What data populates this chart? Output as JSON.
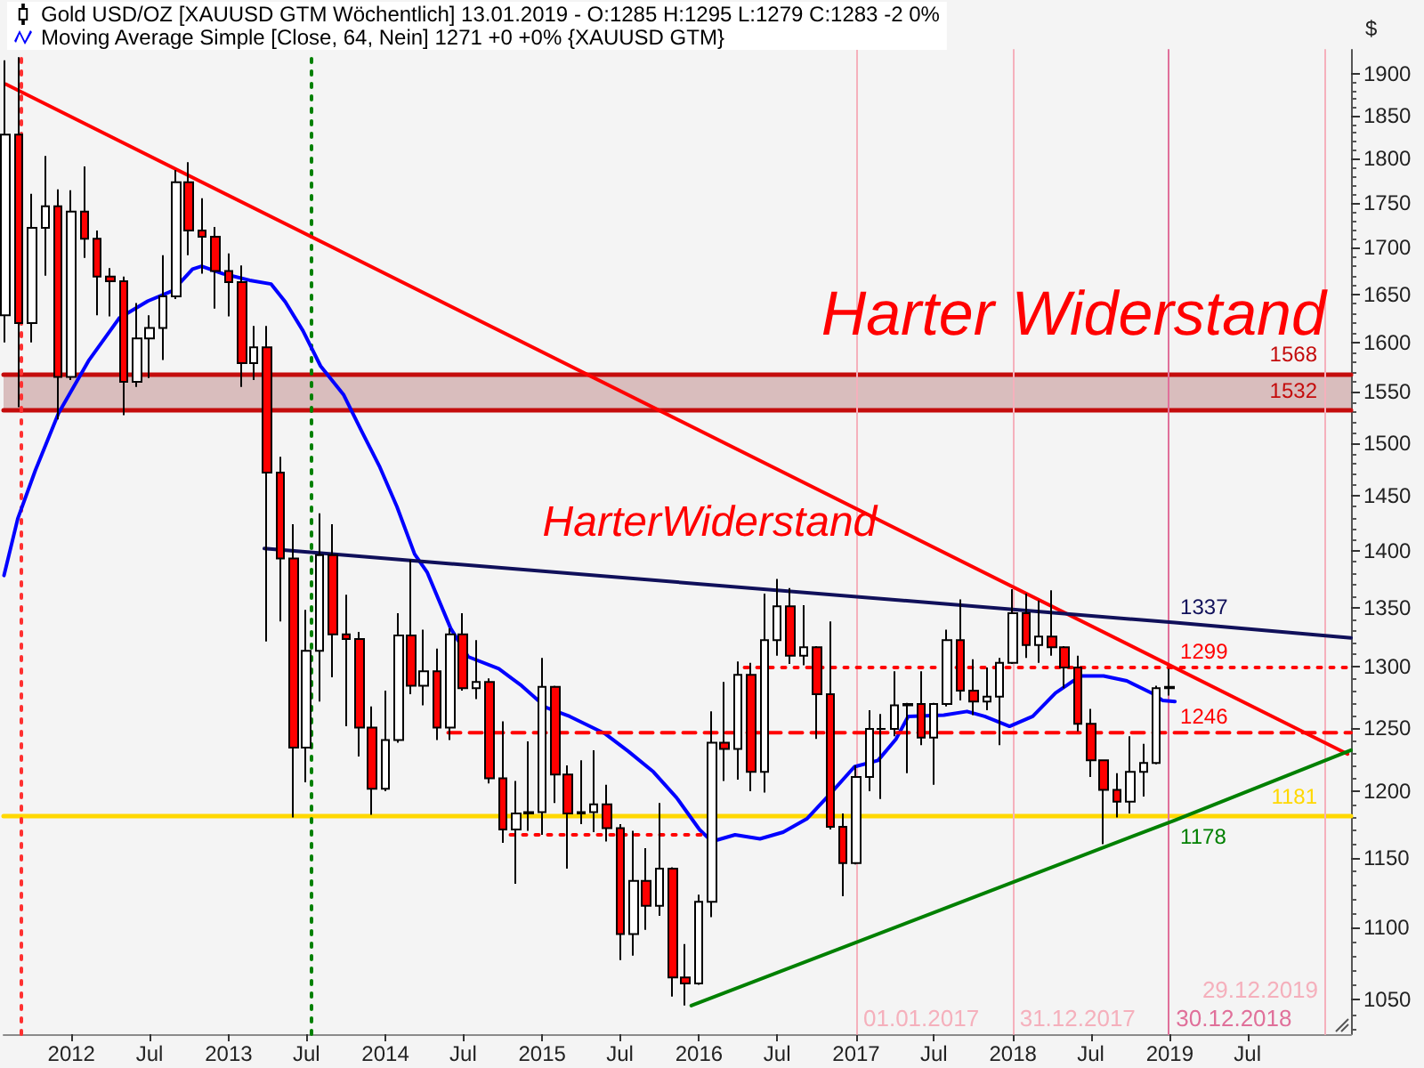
{
  "chart_data": {
    "type": "candlestick",
    "ylabel": "$",
    "log": true,
    "legend": "top left",
    "marker": "none",
    "xlim": [
      "2011-07-27",
      "2020-02-27"
    ],
    "ylim": [
      1027,
      1930
    ],
    "xticks": [
      {
        "value": "2012-01-01",
        "label": "2012"
      },
      {
        "value": "2012-07-01",
        "label": "Jul"
      },
      {
        "value": "2013-01-01",
        "label": "2013"
      },
      {
        "value": "2013-07-01",
        "label": "Jul"
      },
      {
        "value": "2014-01-01",
        "label": "2014"
      },
      {
        "value": "2014-07-01",
        "label": "Jul"
      },
      {
        "value": "2015-01-01",
        "label": "2015"
      },
      {
        "value": "2015-07-01",
        "label": "Jul"
      },
      {
        "value": "2016-01-01",
        "label": "2016"
      },
      {
        "value": "2016-07-01",
        "label": "Jul"
      },
      {
        "value": "2017-01-01",
        "label": "2017"
      },
      {
        "value": "2017-07-01",
        "label": "Jul"
      },
      {
        "value": "2018-01-01",
        "label": "2018"
      },
      {
        "value": "2018-07-01",
        "label": "Jul"
      },
      {
        "value": "2019-01-01",
        "label": "2019"
      },
      {
        "value": "2019-07-01",
        "label": "Jul"
      }
    ],
    "yticks": [
      {
        "value": 1030,
        "label": null
      },
      {
        "value": 1040,
        "label": null
      },
      1050,
      {
        "value": 1060,
        "label": null
      },
      {
        "value": 1070,
        "label": null
      },
      {
        "value": 1080,
        "label": null
      },
      {
        "value": 1090,
        "label": null
      },
      1100,
      {
        "value": 1110,
        "label": null
      },
      {
        "value": 1120,
        "label": null
      },
      {
        "value": 1130,
        "label": null
      },
      {
        "value": 1140,
        "label": null
      },
      1150,
      {
        "value": 1160,
        "label": null
      },
      {
        "value": 1170,
        "label": null
      },
      {
        "value": 1180,
        "label": null
      },
      {
        "value": 1190,
        "label": null
      },
      1200,
      {
        "value": 1210,
        "label": null
      },
      {
        "value": 1220,
        "label": null
      },
      {
        "value": 1230,
        "label": null
      },
      {
        "value": 1240,
        "label": null
      },
      1250,
      {
        "value": 1260,
        "label": null
      },
      {
        "value": 1270,
        "label": null
      },
      {
        "value": 1280,
        "label": null
      },
      {
        "value": 1290,
        "label": null
      },
      1300,
      {
        "value": 1310,
        "label": null
      },
      {
        "value": 1320,
        "label": null
      },
      {
        "value": 1330,
        "label": null
      },
      {
        "value": 1340,
        "label": null
      },
      1350,
      {
        "value": 1360,
        "label": null
      },
      {
        "value": 1370,
        "label": null
      },
      {
        "value": 1380,
        "label": null
      },
      {
        "value": 1390,
        "label": null
      },
      1400,
      {
        "value": 1410,
        "label": null
      },
      {
        "value": 1420,
        "label": null
      },
      {
        "value": 1430,
        "label": null
      },
      {
        "value": 1440,
        "label": null
      },
      1450,
      {
        "value": 1460,
        "label": null
      },
      {
        "value": 1470,
        "label": null
      },
      {
        "value": 1480,
        "label": null
      },
      {
        "value": 1490,
        "label": null
      },
      1500,
      {
        "value": 1510,
        "label": null
      },
      {
        "value": 1520,
        "label": null
      },
      {
        "value": 1530,
        "label": null
      },
      {
        "value": 1540,
        "label": null
      },
      1550,
      {
        "value": 1560,
        "label": null
      },
      {
        "value": 1570,
        "label": null
      },
      {
        "value": 1580,
        "label": null
      },
      {
        "value": 1590,
        "label": null
      },
      1600,
      {
        "value": 1610,
        "label": null
      },
      {
        "value": 1620,
        "label": null
      },
      {
        "value": 1630,
        "label": null
      },
      {
        "value": 1640,
        "label": null
      },
      1650,
      {
        "value": 1660,
        "label": null
      },
      {
        "value": 1670,
        "label": null
      },
      {
        "value": 1680,
        "label": null
      },
      {
        "value": 1690,
        "label": null
      },
      1700,
      {
        "value": 1710,
        "label": null
      },
      {
        "value": 1720,
        "label": null
      },
      {
        "value": 1730,
        "label": null
      },
      {
        "value": 1740,
        "label": null
      },
      1750,
      {
        "value": 1760,
        "label": null
      },
      {
        "value": 1770,
        "label": null
      },
      {
        "value": 1780,
        "label": null
      },
      {
        "value": 1790,
        "label": null
      },
      1800,
      {
        "value": 1810,
        "label": null
      },
      {
        "value": 1820,
        "label": null
      },
      {
        "value": 1830,
        "label": null
      },
      {
        "value": 1840,
        "label": null
      },
      1850,
      {
        "value": 1860,
        "label": null
      },
      {
        "value": 1870,
        "label": null
      },
      {
        "value": 1880,
        "label": null
      },
      {
        "value": 1890,
        "label": null
      },
      1900
    ],
    "series": [
      {
        "name": "Gold USD/OZ [XAUUSD GTM Wöchentlich] 13.01.2019 - O:1285 H:1295 L:1279 C:1283 -2 0%",
        "x": [
          "2011-08",
          "2011-09",
          "2011-10",
          "2011-11",
          "2011-12",
          "2012-01",
          "2012-02",
          "2012-03",
          "2012-04",
          "2012-05",
          "2012-06",
          "2012-07",
          "2012-08",
          "2012-09",
          "2012-10",
          "2012-11",
          "2012-12",
          "2013-01",
          "2013-02",
          "2013-03",
          "2013-04",
          "2013-05",
          "2013-06",
          "2013-07",
          "2013-08",
          "2013-09",
          "2013-10",
          "2013-11",
          "2013-12",
          "2014-01",
          "2014-02",
          "2014-03",
          "2014-04",
          "2014-05",
          "2014-06",
          "2014-07",
          "2014-08",
          "2014-09",
          "2014-10",
          "2014-11",
          "2014-12",
          "2015-01",
          "2015-02",
          "2015-03",
          "2015-04",
          "2015-05",
          "2015-06",
          "2015-07",
          "2015-08",
          "2015-09",
          "2015-10",
          "2015-11",
          "2015-12",
          "2016-01",
          "2016-02",
          "2016-03",
          "2016-04",
          "2016-05",
          "2016-06",
          "2016-07",
          "2016-08",
          "2016-09",
          "2016-10",
          "2016-11",
          "2016-12",
          "2017-01",
          "2017-02",
          "2017-03",
          "2017-04",
          "2017-05",
          "2017-06",
          "2017-07",
          "2017-08",
          "2017-09",
          "2017-10",
          "2017-11",
          "2017-12",
          "2018-01",
          "2018-02",
          "2018-03",
          "2018-04",
          "2018-05",
          "2018-06",
          "2018-07",
          "2018-08",
          "2018-09",
          "2018-10",
          "2018-11",
          "2018-12",
          "2019-01"
        ],
        "ohlc": [
          [
            1628,
            1917,
            1600,
            1828
          ],
          [
            1828,
            1921,
            1535,
            1620
          ],
          [
            1620,
            1760,
            1600,
            1722
          ],
          [
            1722,
            1803,
            1670,
            1746
          ],
          [
            1746,
            1765,
            1523,
            1565
          ],
          [
            1565,
            1764,
            1562,
            1740
          ],
          [
            1740,
            1791,
            1689,
            1710
          ],
          [
            1710,
            1719,
            1628,
            1669
          ],
          [
            1669,
            1678,
            1627,
            1664
          ],
          [
            1664,
            1669,
            1527,
            1560
          ],
          [
            1560,
            1641,
            1555,
            1604
          ],
          [
            1604,
            1628,
            1564,
            1615
          ],
          [
            1615,
            1692,
            1582,
            1648
          ],
          [
            1648,
            1787,
            1645,
            1773
          ],
          [
            1773,
            1796,
            1692,
            1719
          ],
          [
            1719,
            1755,
            1672,
            1712
          ],
          [
            1712,
            1723,
            1635,
            1675
          ],
          [
            1675,
            1694,
            1627,
            1663
          ],
          [
            1663,
            1681,
            1555,
            1579
          ],
          [
            1579,
            1617,
            1562,
            1595
          ],
          [
            1595,
            1617,
            1321,
            1472
          ],
          [
            1472,
            1487,
            1338,
            1393
          ],
          [
            1393,
            1424,
            1180,
            1234
          ],
          [
            1234,
            1348,
            1207,
            1313
          ],
          [
            1313,
            1434,
            1271,
            1396
          ],
          [
            1396,
            1424,
            1291,
            1327
          ],
          [
            1327,
            1361,
            1251,
            1323
          ],
          [
            1323,
            1329,
            1227,
            1250
          ],
          [
            1250,
            1267,
            1182,
            1202
          ],
          [
            1202,
            1280,
            1200,
            1240
          ],
          [
            1240,
            1345,
            1238,
            1326
          ],
          [
            1326,
            1392,
            1277,
            1284
          ],
          [
            1284,
            1331,
            1268,
            1296
          ],
          [
            1296,
            1315,
            1240,
            1250
          ],
          [
            1250,
            1332,
            1240,
            1327
          ],
          [
            1327,
            1345,
            1280,
            1282
          ],
          [
            1282,
            1322,
            1273,
            1287
          ],
          [
            1287,
            1290,
            1206,
            1210
          ],
          [
            1210,
            1255,
            1161,
            1171
          ],
          [
            1171,
            1208,
            1131,
            1183
          ],
          [
            1183,
            1239,
            1170,
            1184
          ],
          [
            1184,
            1307,
            1167,
            1283
          ],
          [
            1283,
            1284,
            1191,
            1213
          ],
          [
            1213,
            1220,
            1142,
            1183
          ],
          [
            1183,
            1224,
            1175,
            1184
          ],
          [
            1184,
            1232,
            1169,
            1190
          ],
          [
            1190,
            1205,
            1162,
            1172
          ],
          [
            1172,
            1175,
            1077,
            1095
          ],
          [
            1095,
            1170,
            1080,
            1133
          ],
          [
            1133,
            1157,
            1098,
            1115
          ],
          [
            1115,
            1191,
            1108,
            1142
          ],
          [
            1142,
            1143,
            1052,
            1065
          ],
          [
            1065,
            1088,
            1046,
            1061
          ],
          [
            1061,
            1123,
            1060,
            1118
          ],
          [
            1118,
            1263,
            1107,
            1238
          ],
          [
            1238,
            1287,
            1208,
            1233
          ],
          [
            1233,
            1304,
            1209,
            1293
          ],
          [
            1293,
            1303,
            1200,
            1215
          ],
          [
            1215,
            1362,
            1199,
            1322
          ],
          [
            1322,
            1375,
            1309,
            1351
          ],
          [
            1351,
            1367,
            1302,
            1309
          ],
          [
            1309,
            1352,
            1301,
            1316
          ],
          [
            1316,
            1317,
            1241,
            1277
          ],
          [
            1277,
            1338,
            1171,
            1173
          ],
          [
            1173,
            1183,
            1122,
            1146
          ],
          [
            1146,
            1220,
            1145,
            1211
          ],
          [
            1211,
            1264,
            1200,
            1249
          ],
          [
            1249,
            1261,
            1194,
            1249
          ],
          [
            1249,
            1296,
            1243,
            1268
          ],
          [
            1268,
            1270,
            1214,
            1269
          ],
          [
            1269,
            1296,
            1236,
            1242
          ],
          [
            1242,
            1270,
            1205,
            1269
          ],
          [
            1269,
            1331,
            1267,
            1322
          ],
          [
            1322,
            1357,
            1272,
            1280
          ],
          [
            1280,
            1306,
            1260,
            1271
          ],
          [
            1271,
            1299,
            1264,
            1275
          ],
          [
            1275,
            1307,
            1236,
            1303
          ],
          [
            1303,
            1366,
            1302,
            1345
          ],
          [
            1345,
            1362,
            1307,
            1318
          ],
          [
            1318,
            1356,
            1303,
            1325
          ],
          [
            1325,
            1365,
            1309,
            1316
          ],
          [
            1316,
            1317,
            1282,
            1299
          ],
          [
            1299,
            1309,
            1247,
            1253
          ],
          [
            1253,
            1265,
            1211,
            1224
          ],
          [
            1224,
            1224,
            1160,
            1201
          ],
          [
            1201,
            1214,
            1180,
            1192
          ],
          [
            1192,
            1243,
            1183,
            1215
          ],
          [
            1215,
            1237,
            1196,
            1222
          ],
          [
            1222,
            1284,
            1221,
            1282
          ],
          [
            1282,
            1298,
            1276,
            1283
          ]
        ],
        "colors": [
          "#ffffff",
          "#ff0000",
          "#ffffff",
          "#ffffff",
          "#ff0000",
          "#ffffff",
          "#ff0000",
          "#ff0000",
          "#ff0000",
          "#ff0000",
          "#ffffff",
          "#ffffff",
          "#ffffff",
          "#ffffff",
          "#ff0000",
          "#ff0000",
          "#ff0000",
          "#ff0000",
          "#ff0000",
          "#ffffff",
          "#ff0000",
          "#ff0000",
          "#ff0000",
          "#ffffff",
          "#ffffff",
          "#ff0000",
          "#ff0000",
          "#ff0000",
          "#ff0000",
          "#ffffff",
          "#ffffff",
          "#ff0000",
          "#ffffff",
          "#ff0000",
          "#ffffff",
          "#ff0000",
          "#ffffff",
          "#ff0000",
          "#ff0000",
          "#ffffff",
          "#ffffff",
          "#ffffff",
          "#ff0000",
          "#ff0000",
          "#ffffff",
          "#ffffff",
          "#ff0000",
          "#ff0000",
          "#ffffff",
          "#ff0000",
          "#ffffff",
          "#ff0000",
          "#ff0000",
          "#ffffff",
          "#ffffff",
          "#ff0000",
          "#ffffff",
          "#ff0000",
          "#ffffff",
          "#ffffff",
          "#ff0000",
          "#ffffff",
          "#ff0000",
          "#ff0000",
          "#ff0000",
          "#ffffff",
          "#ffffff",
          "#000000",
          "#ffffff",
          "#ffffff",
          "#ff0000",
          "#ffffff",
          "#ffffff",
          "#ff0000",
          "#ff0000",
          "#ffffff",
          "#ffffff",
          "#ffffff",
          "#ff0000",
          "#ffffff",
          "#ff0000",
          "#ff0000",
          "#ff0000",
          "#ff0000",
          "#ff0000",
          "#ff0000",
          "#ffffff",
          "#ffffff",
          "#ffffff",
          "#ffffff"
        ]
      },
      {
        "type": "line",
        "name": "Moving Average Simple [Close, 64, Nein] 1271 +0 +0% {XAUUSD GTM}",
        "color": "#0000ff",
        "x": [
          "2011-07-28",
          "2011-08-29",
          "2011-10-09",
          "2011-12-02",
          "2012-02-11",
          "2012-04-21",
          "2012-06-27",
          "2012-08-24",
          "2012-10-09",
          "2012-10-30",
          "2012-12-19",
          "2013-02-19",
          "2013-04-10",
          "2013-05-13",
          "2013-06-23",
          "2013-08-03",
          "2013-09-26",
          "2013-11-06",
          "2013-12-18",
          "2014-01-28",
          "2014-03-10",
          "2014-04-08",
          "2014-06-02",
          "2014-07-13",
          "2014-09-22",
          "2014-11-14",
          "2015-01-11",
          "2015-03-06",
          "2015-05-28",
          "2015-07-21",
          "2015-09-17",
          "2015-11-10",
          "2016-01-02",
          "2016-01-31",
          "2016-03-25",
          "2016-05-22",
          "2016-07-15",
          "2016-09-08",
          "2016-11-04",
          "2016-12-28",
          "2017-02-21",
          "2017-04-04",
          "2017-05-02",
          "2017-07-24",
          "2017-09-16",
          "2017-10-27",
          "2017-12-24",
          "2018-02-16",
          "2018-04-10",
          "2018-06-07",
          "2018-07-31",
          "2018-09-23",
          "2018-11-20",
          "2018-12-15",
          "2019-01-13"
        ],
        "values": [
          1378,
          1429,
          1474,
          1529,
          1582,
          1625,
          1643,
          1654,
          1677,
          1680,
          1672,
          1665,
          1661,
          1642,
          1612,
          1576,
          1547,
          1512,
          1478,
          1440,
          1397,
          1381,
          1332,
          1308,
          1298,
          1284,
          1266,
          1259,
          1245,
          1231,
          1215,
          1195,
          1171,
          1162,
          1167,
          1164,
          1169,
          1179,
          1199,
          1219,
          1224,
          1241,
          1259,
          1260,
          1263,
          1259,
          1251,
          1259,
          1278,
          1292,
          1292,
          1288,
          1278,
          1272,
          1271
        ]
      },
      {
        "type": "line",
        "color": "#ff0000",
        "x": [
          "2011-08-01",
          "2020-02-19"
        ],
        "values": [
          1888,
          1229
        ]
      },
      {
        "type": "line",
        "color": "#10105a",
        "x": [
          "2013-03-25",
          "2019-01-13",
          "2020-02-27"
        ],
        "values": [
          1402,
          1337,
          1324
        ],
        "value_labels": [
          null,
          "1337",
          null
        ]
      },
      {
        "type": "line",
        "color": "#008000",
        "x": [
          "2015-12-14",
          "2019-01-13",
          "2020-02-27"
        ],
        "values": [
          1046,
          1178,
          1232
        ],
        "value_labels": [
          null,
          "1178",
          null
        ]
      },
      {
        "type": "line",
        "color": "#ff0000",
        "line_style": "dotted",
        "x": [
          "2016-04-16",
          "2019-01-13",
          "2020-02-27"
        ],
        "values": [
          1299,
          1299,
          1299
        ],
        "value_labels": [
          null,
          "1299",
          null
        ]
      },
      {
        "type": "line",
        "color": "#ff0000",
        "line_style": "dashed",
        "x": [
          "2014-05-27",
          "2019-01-13",
          "2020-02-27"
        ],
        "values": [
          1246,
          1246,
          1246
        ],
        "value_labels": [
          null,
          "1246",
          null
        ]
      },
      {
        "type": "line",
        "color": "#ff0000",
        "line_style": "dotted",
        "x": [
          "2014-10-19",
          "2016-01-18"
        ],
        "values": [
          1167,
          1167
        ]
      }
    ],
    "ref_lines": [
      {
        "axis": "y",
        "value": 1568,
        "label": "1568",
        "color": "#c40c0c"
      },
      {
        "axis": "y",
        "value": 1532,
        "label": "1532",
        "color": "#c40c0c"
      },
      {
        "axis": "y",
        "value": 1181,
        "label": "1181",
        "color": "#ffd800"
      },
      {
        "axis": "x",
        "value": "2011-09-05",
        "color": "#ff3030",
        "line_style": "dotted"
      },
      {
        "axis": "x",
        "value": "2013-07-12",
        "color": "#008000",
        "line_style": "dotted"
      },
      {
        "axis": "x",
        "value": "2017-01-01",
        "label": "01.01.2017",
        "color": "#f5b0bc"
      },
      {
        "axis": "x",
        "value": "2017-12-31",
        "label": "31.12.2017",
        "color": "#f5b0bc"
      },
      {
        "axis": "x",
        "value": "2018-12-30",
        "label": "30.12.2018",
        "color": "#e0709a"
      },
      {
        "axis": "x",
        "value": "2019-12-29",
        "label": "29.12.2019",
        "color": "#f5b0bc"
      }
    ],
    "bands": [
      {
        "axis": "y",
        "from": 1532,
        "to": 1568,
        "label": "Harter Widerstand",
        "color": "#d9bdbd"
      }
    ],
    "annotations": [
      "HarterWiderstand"
    ]
  }
}
